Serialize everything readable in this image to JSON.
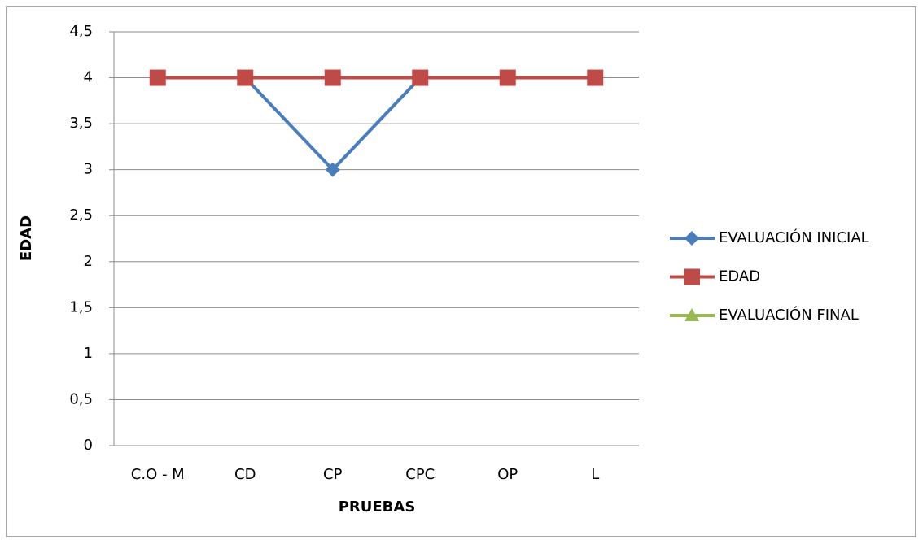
{
  "chart_data": {
    "type": "line",
    "x_label": "PRUEBAS",
    "y_label": "EDAD",
    "categories": [
      "C.O - M",
      "CD",
      "CP",
      "CPC",
      "OP",
      "L"
    ],
    "series": [
      {
        "name": "EVALUACIÓN INICIAL",
        "color": "#4a7ebb",
        "marker": "diamond",
        "values": [
          4,
          4,
          3,
          4,
          4,
          4
        ]
      },
      {
        "name": "EDAD",
        "color": "#be4b48",
        "marker": "square",
        "values": [
          4,
          4,
          4,
          4,
          4,
          4
        ]
      },
      {
        "name": "EVALUACIÓN FINAL",
        "color": "#98b954",
        "marker": "triangle",
        "values": [
          null,
          null,
          null,
          null,
          null,
          null
        ]
      }
    ],
    "ylim": [
      0,
      4.5
    ],
    "yticks": [
      0,
      {
        "value": 0.5,
        "label": "0,5"
      },
      1,
      {
        "value": 1.5,
        "label": "1,5"
      },
      2,
      {
        "value": 2.5,
        "label": "2,5"
      },
      3,
      {
        "value": 3.5,
        "label": "3,5"
      },
      4,
      {
        "value": 4.5,
        "label": "4,5"
      }
    ],
    "grid": true,
    "legend": "right"
  }
}
